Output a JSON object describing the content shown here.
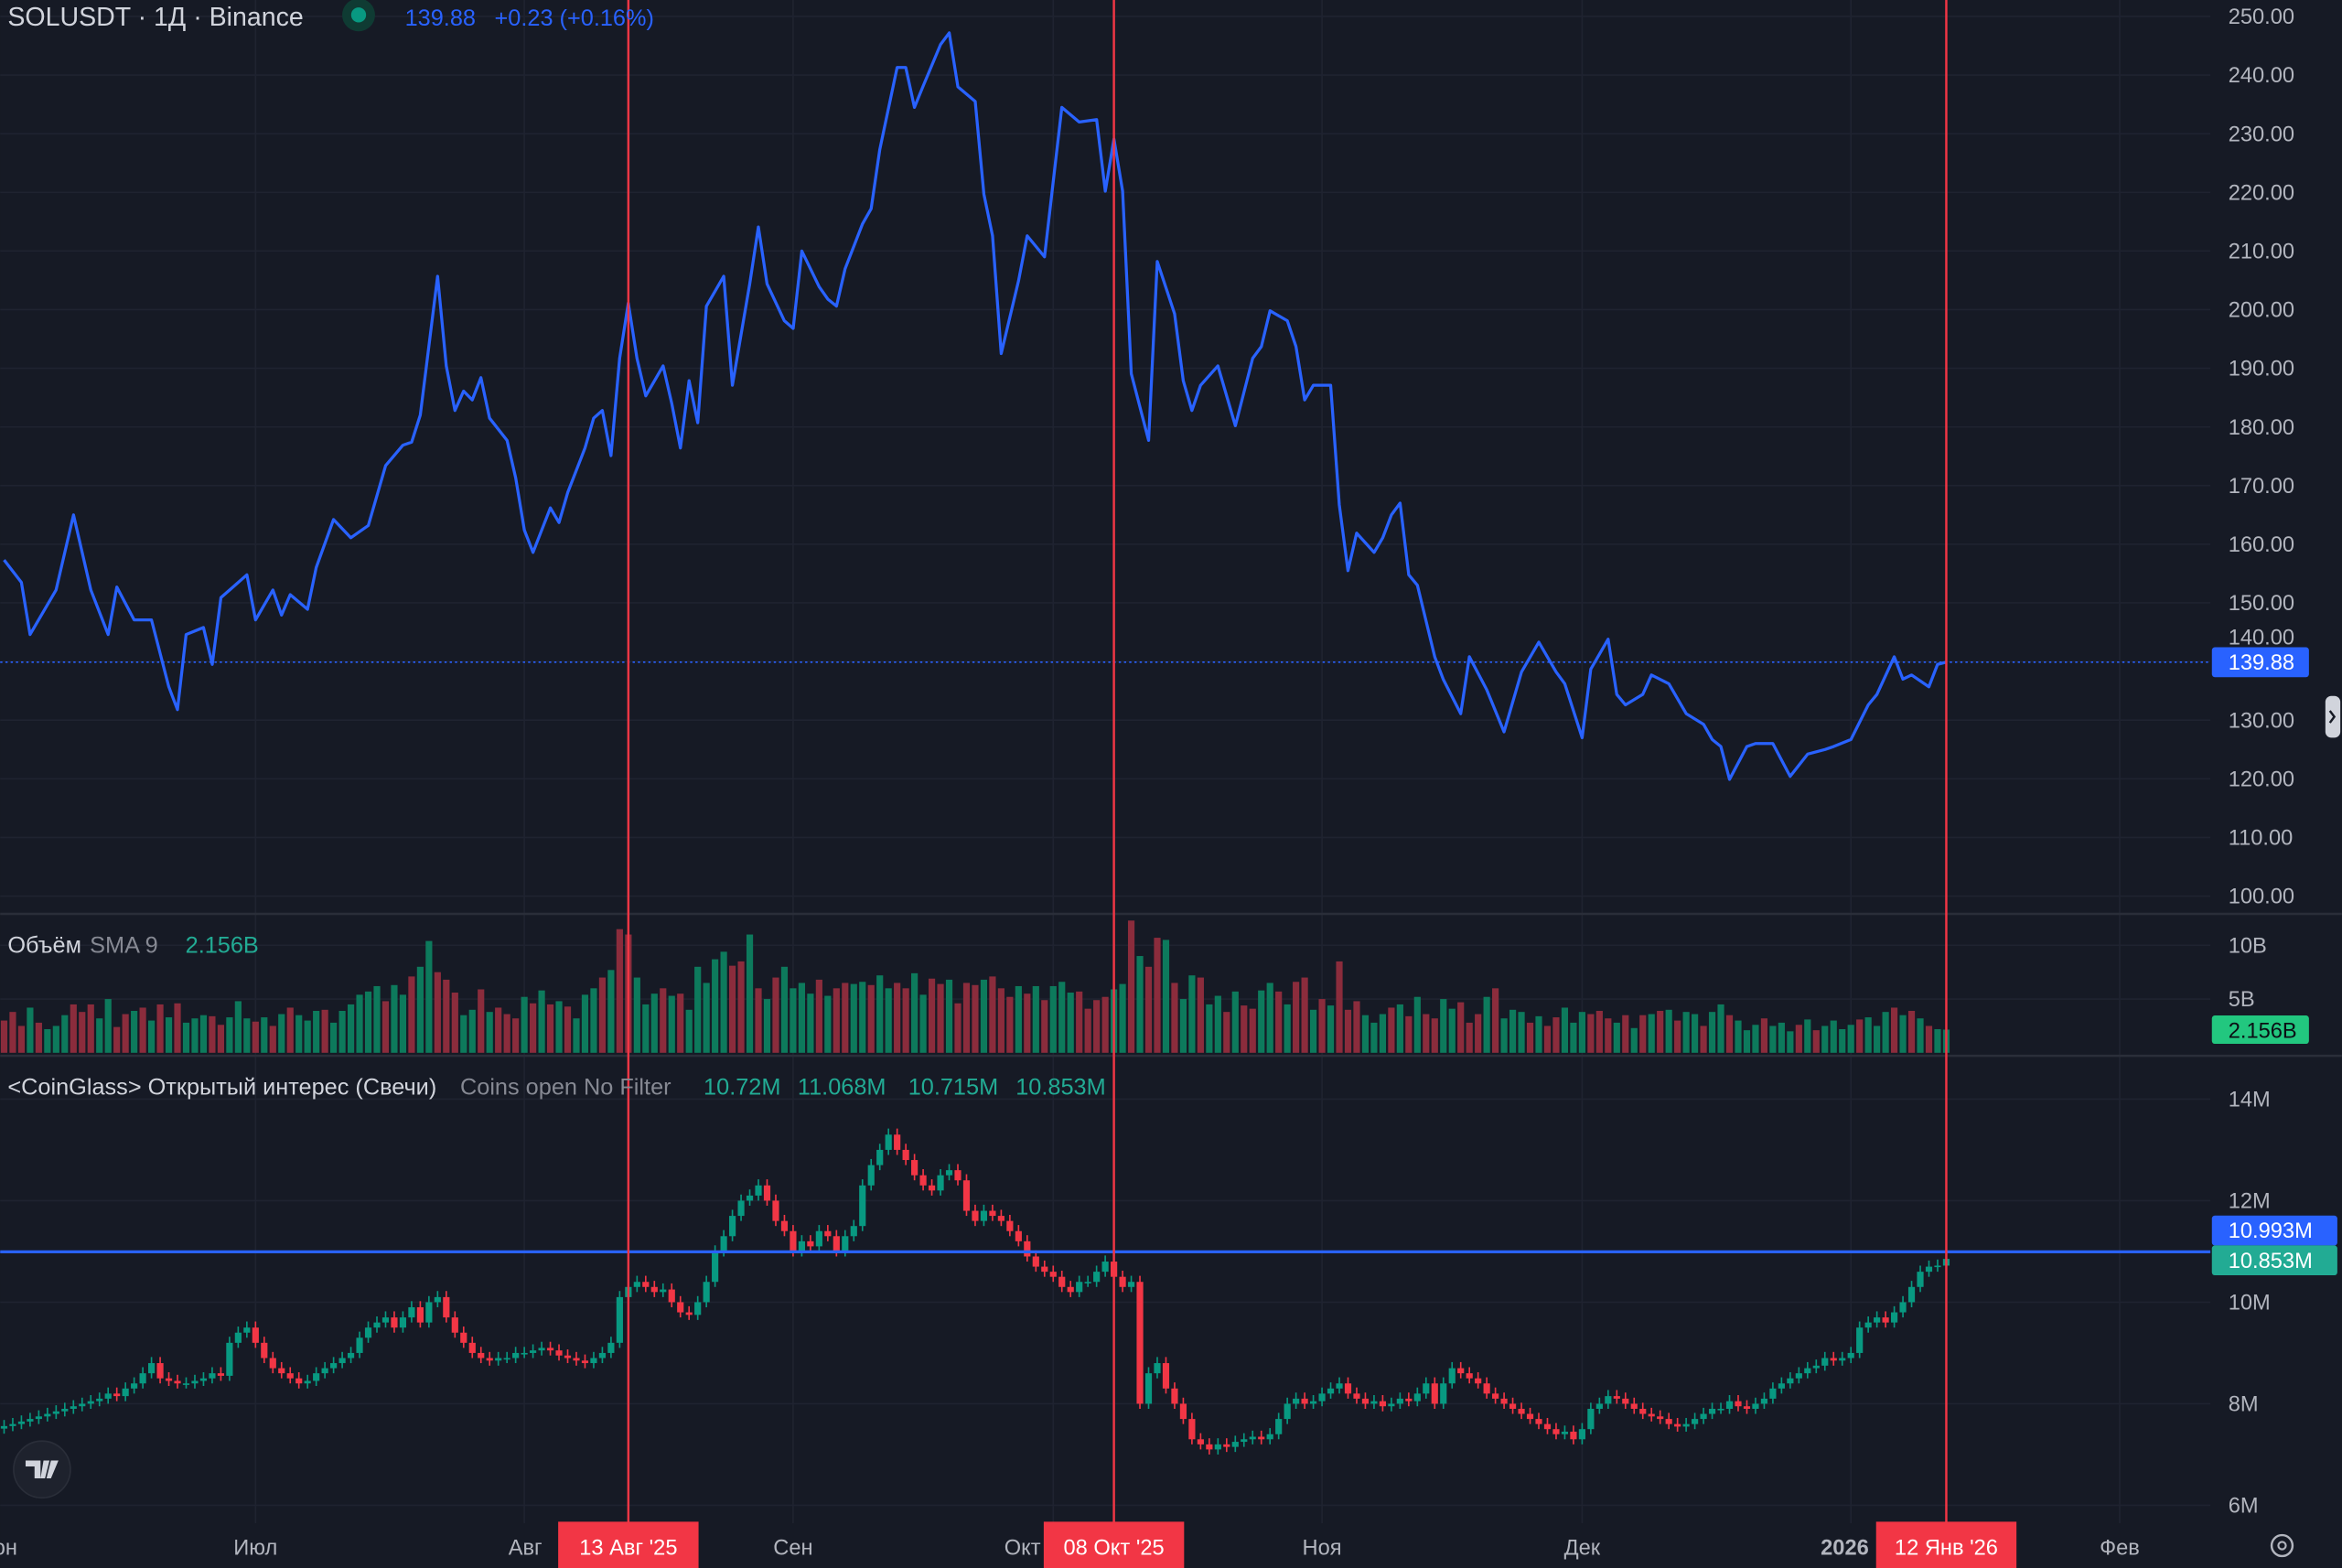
{
  "header": {
    "symbol": "SOLUSDT · 1Д · Binance",
    "last": "139.88",
    "change": "+0.23 (+0.16%)",
    "status_color": "#089981"
  },
  "colors": {
    "background": "#161a25",
    "line": "#2962ff",
    "up": "#089981",
    "down": "#f23645",
    "up_vol": "#0d7a5c",
    "down_vol": "#8b2c3c",
    "marker": "#f23645"
  },
  "price_pane": {
    "ticks": [
      "250.00",
      "240.00",
      "230.00",
      "220.00",
      "210.00",
      "200.00",
      "190.00",
      "180.00",
      "170.00",
      "160.00",
      "150.00",
      "140.00",
      "130.00",
      "120.00",
      "110.00",
      "100.00"
    ],
    "last_label": "139.88",
    "last_value": 139.88
  },
  "volume_pane": {
    "title": "Объём",
    "sma_label": "SMA 9",
    "value": "2.156B",
    "ticks": [
      {
        "label": "10B",
        "v": 10
      },
      {
        "label": "5B",
        "v": 5
      }
    ],
    "last_label": "2.156B"
  },
  "oi_pane": {
    "title": "<CoinGlass> Открытый интерес (Свечи)",
    "params": "Coins open No Filter",
    "ohlc": [
      "10.72M",
      "11.068M",
      "10.715M",
      "10.853M"
    ],
    "ticks": [
      {
        "label": "14M",
        "v": 14
      },
      {
        "label": "12M",
        "v": 12
      },
      {
        "label": "10M",
        "v": 10
      },
      {
        "label": "8M",
        "v": 8
      },
      {
        "label": "6M",
        "v": 6
      }
    ],
    "hline_label": "10.993M",
    "hline_value": 10.993,
    "last_label": "10.853M"
  },
  "time_axis": [
    {
      "label": "Июн",
      "date": "2025-06-01"
    },
    {
      "label": "Июл",
      "date": "2025-07-01"
    },
    {
      "label": "Авг",
      "date": "2025-08-01"
    },
    {
      "label": "Сен",
      "date": "2025-09-01"
    },
    {
      "label": "Окт",
      "date": "2025-10-01"
    },
    {
      "label": "Ноя",
      "date": "2025-11-01"
    },
    {
      "label": "Дек",
      "date": "2025-12-01"
    },
    {
      "label": "2026",
      "date": "2026-01-01",
      "bold": true
    },
    {
      "label": "Фев",
      "date": "2026-02-01"
    }
  ],
  "markers": [
    {
      "label": "13 Авг '25",
      "date": "2025-08-13"
    },
    {
      "label": "08 Окт '25",
      "date": "2025-10-08"
    },
    {
      "label": "12 Янв '26",
      "date": "2026-01-12"
    }
  ],
  "icons": {
    "logo": "tradingview-logo",
    "settings": "gear-icon",
    "scroll": "chevron-right-icon"
  },
  "chart_data": [
    {
      "type": "line",
      "title": "SOLUSDT · 1Д · Binance",
      "ylim": [
        100,
        250
      ],
      "points": [
        [
          "2025-06-02",
          157.3
        ],
        [
          "2025-06-04",
          153.5
        ],
        [
          "2025-06-05",
          144.6
        ],
        [
          "2025-06-08",
          152.2
        ],
        [
          "2025-06-10",
          165.0
        ],
        [
          "2025-06-12",
          152.2
        ],
        [
          "2025-06-14",
          144.6
        ],
        [
          "2025-06-15",
          152.7
        ],
        [
          "2025-06-17",
          147.1
        ],
        [
          "2025-06-19",
          147.1
        ],
        [
          "2025-06-21",
          135.7
        ],
        [
          "2025-06-22",
          131.8
        ],
        [
          "2025-06-23",
          144.6
        ],
        [
          "2025-06-25",
          145.8
        ],
        [
          "2025-06-26",
          139.5
        ],
        [
          "2025-06-27",
          150.9
        ],
        [
          "2025-06-30",
          154.8
        ],
        [
          "2025-07-01",
          147.1
        ],
        [
          "2025-07-03",
          152.2
        ],
        [
          "2025-07-04",
          147.9
        ],
        [
          "2025-07-05",
          151.4
        ],
        [
          "2025-07-07",
          148.9
        ],
        [
          "2025-07-08",
          156.0
        ],
        [
          "2025-07-10",
          164.2
        ],
        [
          "2025-07-12",
          161.1
        ],
        [
          "2025-07-14",
          163.2
        ],
        [
          "2025-07-16",
          173.4
        ],
        [
          "2025-07-18",
          176.9
        ],
        [
          "2025-07-19",
          177.4
        ],
        [
          "2025-07-20",
          182.0
        ],
        [
          "2025-07-22",
          205.7
        ],
        [
          "2025-07-23",
          190.4
        ],
        [
          "2025-07-24",
          182.8
        ],
        [
          "2025-07-25",
          186.1
        ],
        [
          "2025-07-26",
          184.6
        ],
        [
          "2025-07-27",
          188.4
        ],
        [
          "2025-07-28",
          181.5
        ],
        [
          "2025-07-30",
          177.7
        ],
        [
          "2025-07-31",
          171.3
        ],
        [
          "2025-08-01",
          162.4
        ],
        [
          "2025-08-02",
          158.6
        ],
        [
          "2025-08-04",
          166.2
        ],
        [
          "2025-08-05",
          163.7
        ],
        [
          "2025-08-06",
          168.8
        ],
        [
          "2025-08-08",
          176.4
        ],
        [
          "2025-08-09",
          181.5
        ],
        [
          "2025-08-10",
          182.8
        ],
        [
          "2025-08-11",
          175.1
        ],
        [
          "2025-08-12",
          191.7
        ],
        [
          "2025-08-13",
          201.1
        ],
        [
          "2025-08-14",
          191.7
        ],
        [
          "2025-08-15",
          185.3
        ],
        [
          "2025-08-17",
          190.4
        ],
        [
          "2025-08-18",
          184.0
        ],
        [
          "2025-08-19",
          176.4
        ],
        [
          "2025-08-20",
          187.9
        ],
        [
          "2025-08-21",
          180.7
        ],
        [
          "2025-08-22",
          200.6
        ],
        [
          "2025-08-24",
          205.7
        ],
        [
          "2025-08-25",
          187.1
        ],
        [
          "2025-08-27",
          204.4
        ],
        [
          "2025-08-28",
          214.1
        ],
        [
          "2025-08-29",
          204.4
        ],
        [
          "2025-08-31",
          198.1
        ],
        [
          "2025-09-01",
          196.8
        ],
        [
          "2025-09-02",
          210.0
        ],
        [
          "2025-09-04",
          203.9
        ],
        [
          "2025-09-05",
          201.8
        ],
        [
          "2025-09-06",
          200.6
        ],
        [
          "2025-09-07",
          207.0
        ],
        [
          "2025-09-09",
          214.6
        ],
        [
          "2025-09-10",
          217.2
        ],
        [
          "2025-09-11",
          227.3
        ],
        [
          "2025-09-13",
          241.3
        ],
        [
          "2025-09-14",
          241.3
        ],
        [
          "2025-09-15",
          234.5
        ],
        [
          "2025-09-16",
          238.1
        ],
        [
          "2025-09-18",
          245.2
        ],
        [
          "2025-09-19",
          247.2
        ],
        [
          "2025-09-20",
          238.0
        ],
        [
          "2025-09-22",
          235.5
        ],
        [
          "2025-09-23",
          219.7
        ],
        [
          "2025-09-24",
          212.6
        ],
        [
          "2025-09-25",
          192.5
        ],
        [
          "2025-09-27",
          204.9
        ],
        [
          "2025-09-28",
          212.6
        ],
        [
          "2025-09-30",
          209.0
        ],
        [
          "2025-10-02",
          234.5
        ],
        [
          "2025-10-04",
          232.0
        ],
        [
          "2025-10-06",
          232.4
        ],
        [
          "2025-10-07",
          220.2
        ],
        [
          "2025-10-08",
          229.1
        ],
        [
          "2025-10-09",
          220.2
        ],
        [
          "2025-10-10",
          189.1
        ],
        [
          "2025-10-12",
          177.7
        ],
        [
          "2025-10-13",
          208.2
        ],
        [
          "2025-10-15",
          199.3
        ],
        [
          "2025-10-16",
          187.9
        ],
        [
          "2025-10-17",
          182.8
        ],
        [
          "2025-10-18",
          187.1
        ],
        [
          "2025-10-20",
          190.4
        ],
        [
          "2025-10-22",
          180.2
        ],
        [
          "2025-10-24",
          191.7
        ],
        [
          "2025-10-25",
          193.7
        ],
        [
          "2025-10-26",
          199.8
        ],
        [
          "2025-10-28",
          198.1
        ],
        [
          "2025-10-29",
          193.7
        ],
        [
          "2025-10-30",
          184.6
        ],
        [
          "2025-10-31",
          187.1
        ],
        [
          "2025-11-02",
          187.1
        ],
        [
          "2025-11-03",
          166.7
        ],
        [
          "2025-11-04",
          155.5
        ],
        [
          "2025-11-05",
          161.9
        ],
        [
          "2025-11-07",
          158.6
        ],
        [
          "2025-11-08",
          161.1
        ],
        [
          "2025-11-09",
          165.0
        ],
        [
          "2025-11-10",
          167.0
        ],
        [
          "2025-11-11",
          154.8
        ],
        [
          "2025-11-12",
          153.0
        ],
        [
          "2025-11-14",
          140.8
        ],
        [
          "2025-11-15",
          136.9
        ],
        [
          "2025-11-17",
          131.1
        ],
        [
          "2025-11-18",
          140.8
        ],
        [
          "2025-11-20",
          135.2
        ],
        [
          "2025-11-22",
          128.0
        ],
        [
          "2025-11-24",
          138.2
        ],
        [
          "2025-11-26",
          143.3
        ],
        [
          "2025-11-28",
          138.2
        ],
        [
          "2025-11-29",
          136.2
        ],
        [
          "2025-12-01",
          127.0
        ],
        [
          "2025-12-02",
          138.7
        ],
        [
          "2025-12-04",
          143.8
        ],
        [
          "2025-12-05",
          134.4
        ],
        [
          "2025-12-06",
          132.6
        ],
        [
          "2025-12-08",
          134.4
        ],
        [
          "2025-12-09",
          137.7
        ],
        [
          "2025-12-11",
          136.2
        ],
        [
          "2025-12-13",
          131.1
        ],
        [
          "2025-12-15",
          129.3
        ],
        [
          "2025-12-16",
          126.7
        ],
        [
          "2025-12-17",
          125.5
        ],
        [
          "2025-12-18",
          119.9
        ],
        [
          "2025-12-20",
          125.5
        ],
        [
          "2025-12-21",
          126.0
        ],
        [
          "2025-12-23",
          126.0
        ],
        [
          "2025-12-25",
          120.4
        ],
        [
          "2025-12-27",
          124.2
        ],
        [
          "2025-12-29",
          125.0
        ],
        [
          "2025-12-30",
          125.5
        ],
        [
          "2026-01-01",
          126.7
        ],
        [
          "2026-01-03",
          132.6
        ],
        [
          "2026-01-04",
          134.4
        ],
        [
          "2026-01-06",
          140.8
        ],
        [
          "2026-01-07",
          137.0
        ],
        [
          "2026-01-08",
          137.7
        ],
        [
          "2026-01-10",
          135.7
        ],
        [
          "2026-01-11",
          139.5
        ],
        [
          "2026-01-12",
          139.88
        ]
      ]
    },
    {
      "type": "bar",
      "title": "Объём",
      "start": "2025-06-02",
      "unit": "B",
      "values": [
        3.0,
        3.8,
        2.5,
        4.2,
        2.8,
        2.2,
        2.5,
        3.5,
        4.5,
        3.8,
        4.5,
        3.2,
        5.0,
        2.4,
        3.6,
        3.9,
        4.2,
        3.0,
        4.5,
        3.3,
        4.6,
        2.8,
        3.2,
        3.5,
        3.4,
        2.6,
        3.3,
        4.8,
        3.2,
        2.9,
        3.3,
        2.5,
        3.6,
        4.2,
        3.5,
        3.0,
        3.9,
        4.0,
        2.8,
        3.9,
        4.5,
        5.4,
        5.7,
        6.2,
        4.8,
        6.3,
        5.4,
        7.1,
        8.0,
        10.4,
        7.5,
        6.8,
        5.6,
        3.5,
        4.0,
        5.9,
        3.8,
        4.2,
        3.6,
        3.2,
        5.2,
        4.6,
        5.8,
        4.5,
        4.8,
        4.3,
        3.2,
        5.4,
        6.0,
        7.0,
        7.7,
        11.5,
        11.0,
        7.0,
        4.5,
        5.5,
        6.0,
        5.3,
        5.5,
        4.0,
        8.0,
        6.5,
        8.7,
        9.4,
        8.1,
        8.5,
        11.0,
        6.0,
        5.0,
        7.0,
        8.0,
        6.0,
        6.5,
        5.5,
        6.8,
        5.3,
        6.0,
        6.5,
        6.4,
        6.6,
        6.3,
        7.2,
        6.0,
        6.5,
        6.0,
        7.4,
        5.4,
        6.9,
        6.4,
        6.8,
        4.6,
        6.5,
        6.3,
        6.8,
        7.1,
        6.0,
        5.2,
        6.2,
        5.5,
        6.2,
        4.9,
        6.2,
        6.6,
        5.6,
        5.7,
        4.1,
        4.9,
        5.2,
        5.9,
        6.4,
        12.3,
        9.0,
        8.0,
        10.7,
        10.5,
        6.5,
        5.0,
        7.2,
        7.0,
        4.5,
        5.3,
        3.8,
        5.7,
        4.4,
        4.1,
        5.8,
        6.5,
        5.7,
        4.5,
        6.6,
        7.0,
        4.0,
        5.0,
        4.4,
        8.5,
        4.0,
        4.8,
        3.5,
        2.8,
        3.6,
        4.2,
        4.5,
        3.4,
        5.2,
        3.6,
        3.2,
        5.0,
        4.1,
        4.7,
        2.8,
        3.6,
        5.2,
        6.0,
        3.2,
        4.0,
        3.8,
        2.8,
        3.4,
        2.5,
        3.3,
        4.2,
        2.8,
        3.8,
        3.6,
        3.9,
        3.2,
        2.8,
        3.5,
        2.3,
        3.5,
        3.6,
        3.9,
        4.0,
        3.0,
        3.8,
        3.6,
        2.5,
        3.8,
        4.5,
        3.5,
        3.0,
        2.1,
        2.6,
        3.2,
        2.5,
        2.8,
        2.0,
        2.6,
        3.1,
        2.1,
        2.5,
        3.0,
        2.2,
        2.6,
        3.1,
        3.3,
        2.5,
        3.8,
        4.2,
        3.5,
        3.9,
        3.2,
        2.5,
        2.2,
        2.156
      ],
      "direction": "DDDUDUUUDDDUUDDUDUDUDUUUDDUUUDUDUDUUUDUUUUUUDUUDUUDDDUUDUDDDUDUDUDUUUDUDDUUUDUDUUUUUDDUDUDUUUUDUDDUUDUUDDUUDDUDDDUDDDUDUDUUUDDDDUUDUDDUDUUDUUDUDDUUDUDDUDUDDDUUUDUDUDDUUDDDUDUUUDUDDUUUDDDUDUDUDUDUUDUUDUUUDUUUDUDUUUUDUUUDUDUDUUU"
    },
    {
      "type": "candlestick",
      "title": "<CoinGlass> Открытый интерес (Свечи)",
      "start": "2025-06-02",
      "unit": "M",
      "ylim": [
        6,
        14.5
      ],
      "closes": [
        7.56,
        7.6,
        7.65,
        7.7,
        7.75,
        7.8,
        7.85,
        7.9,
        7.95,
        8.0,
        8.05,
        8.1,
        8.2,
        8.15,
        8.3,
        8.4,
        8.6,
        8.8,
        8.5,
        8.45,
        8.4,
        8.4,
        8.45,
        8.5,
        8.6,
        8.55,
        9.2,
        9.4,
        9.5,
        9.2,
        8.9,
        8.7,
        8.6,
        8.5,
        8.4,
        8.45,
        8.6,
        8.7,
        8.8,
        8.9,
        9.0,
        9.3,
        9.5,
        9.6,
        9.7,
        9.5,
        9.7,
        9.9,
        9.6,
        10.0,
        10.1,
        9.7,
        9.4,
        9.2,
        9.0,
        8.9,
        8.85,
        8.9,
        8.9,
        9.0,
        9.0,
        9.05,
        9.1,
        9.05,
        8.95,
        8.9,
        8.85,
        8.8,
        8.9,
        9.0,
        9.2,
        10.1,
        10.3,
        10.4,
        10.3,
        10.2,
        10.25,
        10.0,
        9.8,
        9.75,
        10.0,
        10.4,
        11.0,
        11.3,
        11.7,
        12.0,
        12.1,
        12.3,
        12.0,
        11.6,
        11.4,
        11.0,
        11.2,
        11.1,
        11.4,
        11.3,
        11.0,
        11.3,
        11.5,
        12.3,
        12.7,
        13.0,
        13.3,
        13.0,
        12.8,
        12.5,
        12.3,
        12.2,
        12.5,
        12.6,
        12.4,
        11.8,
        11.6,
        11.8,
        11.7,
        11.6,
        11.4,
        11.2,
        10.9,
        10.7,
        10.6,
        10.5,
        10.3,
        10.2,
        10.4,
        10.4,
        10.6,
        10.8,
        10.5,
        10.3,
        10.4,
        8.0,
        8.6,
        8.8,
        8.3,
        8.0,
        7.7,
        7.3,
        7.2,
        7.1,
        7.2,
        7.15,
        7.25,
        7.3,
        7.35,
        7.3,
        7.4,
        7.7,
        8.0,
        8.1,
        8.0,
        8.05,
        8.2,
        8.3,
        8.4,
        8.2,
        8.1,
        8.0,
        8.05,
        7.95,
        8.0,
        8.1,
        8.05,
        8.2,
        8.4,
        8.0,
        8.4,
        8.7,
        8.6,
        8.5,
        8.4,
        8.2,
        8.1,
        8.0,
        7.9,
        7.8,
        7.7,
        7.6,
        7.5,
        7.4,
        7.45,
        7.3,
        7.5,
        7.9,
        8.0,
        8.15,
        8.1,
        8.0,
        7.9,
        7.8,
        7.75,
        7.7,
        7.6,
        7.55,
        7.6,
        7.7,
        7.8,
        7.9,
        7.9,
        8.05,
        7.95,
        7.9,
        8.0,
        8.1,
        8.3,
        8.4,
        8.5,
        8.6,
        8.7,
        8.75,
        8.9,
        8.85,
        8.9,
        9.0,
        9.5,
        9.6,
        9.7,
        9.6,
        9.8,
        10.0,
        10.3,
        10.6,
        10.7,
        10.72,
        10.853
      ]
    }
  ]
}
